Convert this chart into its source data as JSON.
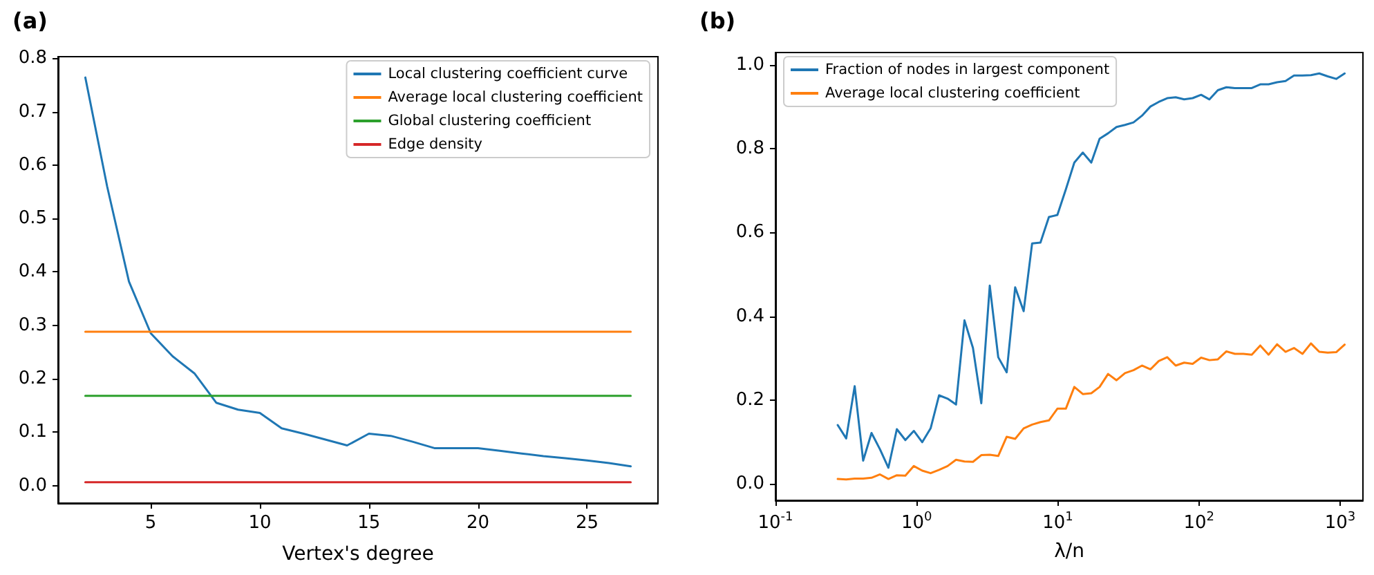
{
  "chart_data": [
    {
      "type": "line",
      "title": "(a)",
      "xlabel": "Vertex's degree",
      "xlim": [
        0.75,
        28.25
      ],
      "xticks": [
        5,
        10,
        15,
        20,
        25
      ],
      "ylim": [
        -0.033,
        0.803
      ],
      "yticks": [
        {
          "value": 0,
          "label": "0.0"
        },
        {
          "value": 0.1,
          "label": "0.1"
        },
        {
          "value": 0.2,
          "label": "0.2"
        },
        {
          "value": 0.3,
          "label": "0.3"
        },
        {
          "value": 0.4,
          "label": "0.4"
        },
        {
          "value": 0.5,
          "label": "0.5"
        },
        {
          "value": 0.6,
          "label": "0.6"
        },
        {
          "value": 0.7,
          "label": "0.7"
        },
        {
          "value": 0.8,
          "label": "0.8"
        }
      ],
      "grid": false,
      "legend": "top right",
      "x": [
        2,
        3,
        4,
        5,
        6,
        7,
        8,
        9,
        10,
        11,
        12,
        13,
        14,
        15,
        16,
        17,
        18,
        19,
        20,
        21,
        22,
        23,
        24,
        25,
        26,
        27
      ],
      "series": [
        {
          "name": "Local clustering coefficient curve",
          "color": "#1f77b4",
          "values": [
            0.764,
            0.56,
            0.382,
            0.285,
            0.242,
            0.21,
            0.155,
            0.142,
            0.136,
            0.107,
            0.097,
            0.086,
            0.075,
            0.097,
            0.093,
            0.082,
            0.07,
            0.07,
            0.07,
            0.065,
            0.06,
            0.055,
            0.051,
            0.047,
            0.042,
            0.036
          ]
        },
        {
          "name": "Average local clustering coefficient",
          "color": "#ff7f0e",
          "values": [
            0.288,
            0.288,
            0.288,
            0.288,
            0.288,
            0.288,
            0.288,
            0.288,
            0.288,
            0.288,
            0.288,
            0.288,
            0.288,
            0.288,
            0.288,
            0.288,
            0.288,
            0.288,
            0.288,
            0.288,
            0.288,
            0.288,
            0.288,
            0.288,
            0.288,
            0.288
          ]
        },
        {
          "name": "Global clustering coefficient",
          "color": "#2ca02c",
          "values": [
            0.168,
            0.168,
            0.168,
            0.168,
            0.168,
            0.168,
            0.168,
            0.168,
            0.168,
            0.168,
            0.168,
            0.168,
            0.168,
            0.168,
            0.168,
            0.168,
            0.168,
            0.168,
            0.168,
            0.168,
            0.168,
            0.168,
            0.168,
            0.168,
            0.168,
            0.168
          ]
        },
        {
          "name": "Edge density",
          "color": "#d62728",
          "values": [
            0.006,
            0.006,
            0.006,
            0.006,
            0.006,
            0.006,
            0.006,
            0.006,
            0.006,
            0.006,
            0.006,
            0.006,
            0.006,
            0.006,
            0.006,
            0.006,
            0.006,
            0.006,
            0.006,
            0.006,
            0.006,
            0.006,
            0.006,
            0.006,
            0.006,
            0.006
          ]
        }
      ]
    },
    {
      "type": "line",
      "title": "(b)",
      "xlabel": "λ/n",
      "log": "x",
      "xlim": [
        0.1,
        1450
      ],
      "xticks": [
        {
          "value": 0.1,
          "label": "10$^{-1}$"
        },
        {
          "value": 1,
          "label": "10$^{0}$"
        },
        {
          "value": 10,
          "label": "10$^{1}$"
        },
        {
          "value": 100,
          "label": "10$^{2}$"
        },
        {
          "value": 1000,
          "label": "10$^{3}$"
        }
      ],
      "ylim": [
        -0.04,
        1.03
      ],
      "yticks": [
        {
          "value": 0,
          "label": "0.0"
        },
        {
          "value": 0.2,
          "label": "0.2"
        },
        {
          "value": 0.4,
          "label": "0.4"
        },
        {
          "value": 0.6,
          "label": "0.6"
        },
        {
          "value": 0.8,
          "label": "0.8"
        },
        {
          "value": 1,
          "label": "1.0"
        }
      ],
      "grid": false,
      "legend": "top left",
      "x": [
        0.276,
        0.317,
        0.364,
        0.418,
        0.479,
        0.55,
        0.631,
        0.724,
        0.832,
        0.955,
        1.096,
        1.256,
        1.442,
        1.656,
        1.901,
        2.182,
        2.506,
        2.871,
        3.296,
        3.784,
        4.345,
        4.989,
        5.728,
        6.577,
        7.534,
        8.65,
        9.93,
        11.4,
        13.09,
        15.03,
        17.26,
        19.77,
        22.7,
        26.06,
        29.92,
        34.36,
        39.45,
        45.29,
        51.88,
        59.57,
        68.39,
        78.52,
        90.16,
        103.5,
        118.6,
        136.1,
        156.3,
        179.5,
        206.1,
        236.6,
        271.6,
        311.2,
        357.3,
        410.2,
        471,
        540.8,
        620.9,
        711.2,
        816.6,
        937.6,
        1076
      ],
      "series": [
        {
          "name": "Fraction of nodes in largest component",
          "color": "#1f77b4",
          "values": [
            0.14,
            0.108,
            0.233,
            0.055,
            0.121,
            0.082,
            0.038,
            0.13,
            0.104,
            0.126,
            0.099,
            0.132,
            0.211,
            0.203,
            0.189,
            0.39,
            0.324,
            0.192,
            0.473,
            0.302,
            0.266,
            0.469,
            0.412,
            0.574,
            0.576,
            0.637,
            0.642,
            0.703,
            0.767,
            0.791,
            0.767,
            0.824,
            0.837,
            0.852,
            0.857,
            0.863,
            0.879,
            0.901,
            0.912,
            0.921,
            0.923,
            0.918,
            0.921,
            0.929,
            0.918,
            0.94,
            0.947,
            0.945,
            0.945,
            0.945,
            0.954,
            0.954,
            0.959,
            0.962,
            0.975,
            0.975,
            0.976,
            0.98,
            0.973,
            0.967,
            0.98
          ]
        },
        {
          "name": "Average local clustering coefficient",
          "color": "#ff7f0e",
          "values": [
            0.011,
            0.01,
            0.012,
            0.012,
            0.014,
            0.022,
            0.011,
            0.02,
            0.019,
            0.042,
            0.031,
            0.025,
            0.033,
            0.042,
            0.057,
            0.053,
            0.052,
            0.068,
            0.069,
            0.066,
            0.112,
            0.107,
            0.132,
            0.141,
            0.147,
            0.151,
            0.179,
            0.179,
            0.231,
            0.214,
            0.216,
            0.231,
            0.262,
            0.247,
            0.264,
            0.271,
            0.282,
            0.273,
            0.293,
            0.302,
            0.282,
            0.289,
            0.286,
            0.301,
            0.295,
            0.297,
            0.316,
            0.31,
            0.31,
            0.308,
            0.33,
            0.308,
            0.333,
            0.315,
            0.324,
            0.31,
            0.335,
            0.315,
            0.313,
            0.314,
            0.332
          ]
        }
      ]
    }
  ]
}
